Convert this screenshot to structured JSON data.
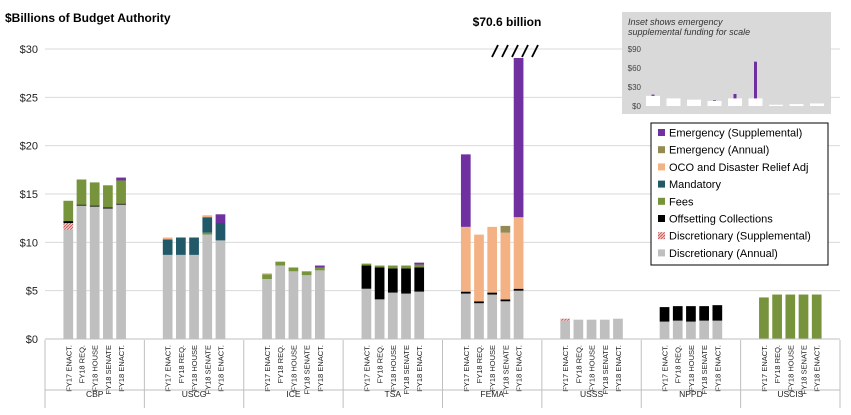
{
  "chart_data": {
    "type": "bar",
    "stacked": true,
    "ylabel": "$Billions of Budget Authority",
    "ylim": [
      0,
      30
    ],
    "yticks": [
      "$0",
      "$5",
      "$10",
      "$15",
      "$20",
      "$25",
      "$30"
    ],
    "annotation": "$70.6 billion",
    "bar_categories": [
      "FY17 ENACT.",
      "FY18 REQ.",
      "FY18 HOUSE",
      "FY18 SENATE",
      "FY18 ENACT."
    ],
    "agencies": [
      {
        "name": "CBP",
        "bars": [
          {
            "Discretionary (Annual)": 11.3,
            "Discretionary (Supplemental)": 0.7,
            "Offsetting Collections": 0.2,
            "Fees": 2.1
          },
          {
            "Discretionary (Annual)": 13.8,
            "Offsetting Collections": 0.1,
            "Fees": 2.6
          },
          {
            "Discretionary (Annual)": 13.7,
            "Offsetting Collections": 0.1,
            "Fees": 2.4
          },
          {
            "Discretionary (Annual)": 13.5,
            "Offsetting Collections": 0.1,
            "Fees": 2.3
          },
          {
            "Discretionary (Annual)": 13.9,
            "Offsetting Collections": 0.1,
            "Fees": 2.4,
            "Emergency (Supplemental)": 0.3
          }
        ]
      },
      {
        "name": "USCG",
        "bars": [
          {
            "Discretionary (Annual)": 8.7,
            "OCO and Disaster Relief Adj": 0.2,
            "Mandatory": 1.6
          },
          {
            "Discretionary (Annual)": 8.7,
            "Mandatory": 1.8
          },
          {
            "Discretionary (Annual)": 8.7,
            "Mandatory": 1.8
          },
          {
            "Discretionary (Annual)": 10.8,
            "OCO and Disaster Relief Adj": 0.2,
            "Mandatory": 1.6,
            "Fees": 0.2
          },
          {
            "Discretionary (Annual)": 10.2,
            "Mandatory": 1.8,
            "Emergency (Supplemental)": 0.9
          }
        ]
      },
      {
        "name": "ICE",
        "bars": [
          {
            "Discretionary (Annual)": 6.2,
            "OCO and Disaster Relief Adj": 0.1,
            "Fees": 0.5
          },
          {
            "Discretionary (Annual)": 7.6,
            "Fees": 0.4
          },
          {
            "Discretionary (Annual)": 7.0,
            "Fees": 0.4
          },
          {
            "Discretionary (Annual)": 6.6,
            "Fees": 0.4
          },
          {
            "Discretionary (Annual)": 7.1,
            "Fees": 0.3,
            "Emergency (Supplemental)": 0.2
          }
        ]
      },
      {
        "name": "TSA",
        "bars": [
          {
            "Discretionary (Annual)": 5.2,
            "Offsetting Collections": 2.4,
            "Fees": 0.2
          },
          {
            "Discretionary (Annual)": 4.1,
            "Offsetting Collections": 3.3,
            "Fees": 0.2
          },
          {
            "Discretionary (Annual)": 4.8,
            "Offsetting Collections": 2.5,
            "Fees": 0.3
          },
          {
            "Discretionary (Annual)": 4.7,
            "Offsetting Collections": 2.6,
            "Fees": 0.3
          },
          {
            "Discretionary (Annual)": 4.9,
            "Offsetting Collections": 2.5,
            "Fees": 0.3,
            "Emergency (Supplemental)": 0.2
          }
        ]
      },
      {
        "name": "FEMA",
        "bars": [
          {
            "Discretionary (Annual)": 4.7,
            "Offsetting Collections": 0.2,
            "OCO and Disaster Relief Adj": 6.7,
            "Emergency (Supplemental)": 7.5
          },
          {
            "Discretionary (Annual)": 3.7,
            "Offsetting Collections": 0.2,
            "OCO and Disaster Relief Adj": 6.9
          },
          {
            "Discretionary (Annual)": 4.6,
            "Offsetting Collections": 0.2,
            "OCO and Disaster Relief Adj": 6.8
          },
          {
            "Discretionary (Annual)": 3.9,
            "Offsetting Collections": 0.2,
            "OCO and Disaster Relief Adj": 6.9,
            "Emergency (Annual)": 0.7
          },
          {
            "Discretionary (Annual)": 5.0,
            "Offsetting Collections": 0.2,
            "OCO and Disaster Relief Adj": 7.4,
            "Emergency (Supplemental)": 58.0
          }
        ]
      },
      {
        "name": "USSS",
        "bars": [
          {
            "Discretionary (Annual)": 1.9,
            "Discretionary (Supplemental)": 0.2
          },
          {
            "Discretionary (Annual)": 2.0
          },
          {
            "Discretionary (Annual)": 2.0
          },
          {
            "Discretionary (Annual)": 2.0
          },
          {
            "Discretionary (Annual)": 2.1
          }
        ]
      },
      {
        "name": "NPPD",
        "bars": [
          {
            "Discretionary (Annual)": 1.8,
            "Offsetting Collections": 1.5
          },
          {
            "Discretionary (Annual)": 1.9,
            "Offsetting Collections": 1.5
          },
          {
            "Discretionary (Annual)": 1.8,
            "Offsetting Collections": 1.6
          },
          {
            "Discretionary (Annual)": 1.9,
            "Offsetting Collections": 1.5
          },
          {
            "Discretionary (Annual)": 1.9,
            "Offsetting Collections": 1.6
          }
        ]
      },
      {
        "name": "USCIS",
        "bars": [
          {
            "Fees": 4.3
          },
          {
            "Fees": 4.6
          },
          {
            "Fees": 4.6
          },
          {
            "Fees": 4.6
          },
          {
            "Fees": 4.6
          }
        ]
      }
    ],
    "legend": [
      {
        "name": "Emergency (Supplemental)",
        "color": "#7030A0"
      },
      {
        "name": "Emergency (Annual)",
        "color": "#948A54"
      },
      {
        "name": "OCO and Disaster Relief Adj",
        "color": "#F4B183"
      },
      {
        "name": "Mandatory",
        "color": "#215968"
      },
      {
        "name": "Fees",
        "color": "#77933C"
      },
      {
        "name": "Offsetting Collections",
        "color": "#000000"
      },
      {
        "name": "Discretionary (Supplemental)",
        "color": "#E39B9B"
      },
      {
        "name": "Discretionary (Annual)",
        "color": "#BFBFBF"
      }
    ],
    "inset": {
      "title_line1": "Inset shows emergency",
      "title_line2": "supplemental funding for scale",
      "ylim": [
        0,
        90
      ],
      "yticks": [
        "$0",
        "$30",
        "$60",
        "$90"
      ],
      "bars": [
        {
          "white": 16,
          "purple": 2
        },
        {
          "white": 12,
          "purple": 0
        },
        {
          "white": 10,
          "purple": 0
        },
        {
          "white": 8,
          "purple": 1
        },
        {
          "white": 12,
          "purple": 7
        },
        {
          "white": 12,
          "purple": 58
        },
        {
          "white": 2,
          "purple": 0
        },
        {
          "white": 3,
          "purple": 0
        },
        {
          "white": 4,
          "purple": 0
        }
      ]
    }
  }
}
